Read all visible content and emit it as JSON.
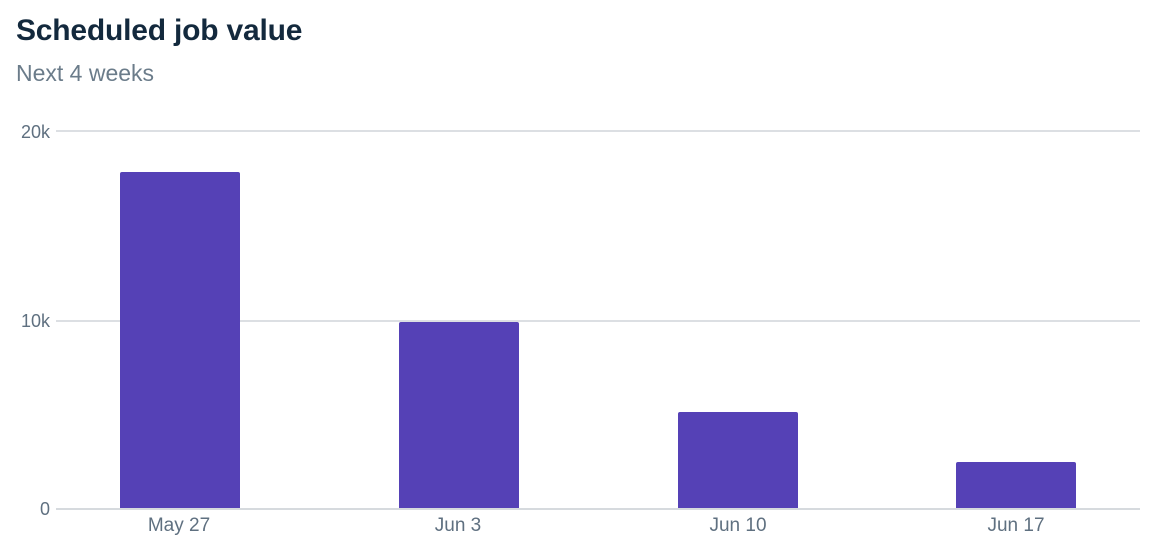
{
  "header": {
    "title": "Scheduled job value",
    "subtitle": "Next 4 weeks"
  },
  "colors": {
    "bar": "#5541b6",
    "title": "#13293d",
    "subtitle": "#6b7c8a",
    "grid": "#dcdfe3"
  },
  "axis": {
    "y_ticks": [
      {
        "label": "20k",
        "value": 20000
      },
      {
        "label": "10k",
        "value": 10000
      },
      {
        "label": "0",
        "value": 0
      }
    ],
    "x_ticks": [
      "May 27",
      "Jun 3",
      "Jun 10",
      "Jun 17"
    ]
  },
  "chart_data": {
    "type": "bar",
    "title": "Scheduled job value",
    "subtitle": "Next 4 weeks",
    "categories": [
      "May 27",
      "Jun 3",
      "Jun 10",
      "Jun 17"
    ],
    "values": [
      17800,
      9870,
      5090,
      2440
    ],
    "xlabel": "",
    "ylabel": "",
    "ylim": [
      0,
      20000
    ],
    "y_tick_labels": [
      "0",
      "10k",
      "20k"
    ],
    "grid": true,
    "legend": "none"
  }
}
